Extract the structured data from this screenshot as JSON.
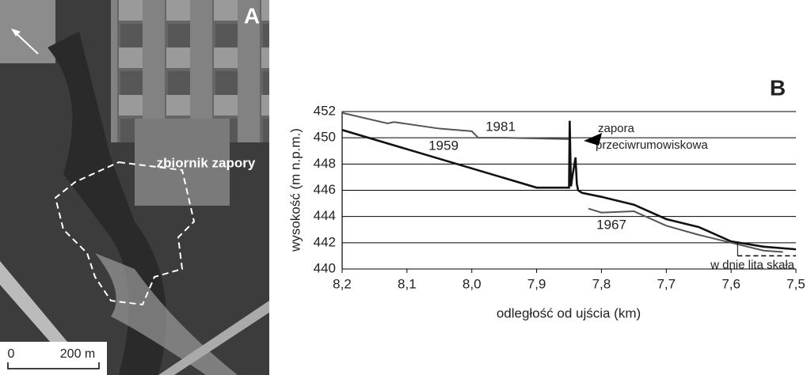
{
  "panel_a": {
    "label": "A",
    "annotation": "zbiornik zapory",
    "scale_bar": [
      "0",
      "200 m"
    ]
  },
  "chart_data": {
    "type": "line",
    "panel_label": "B",
    "x_label": "odległość od ujścia (km)",
    "y_label": "wysokość (m n.p.m.)",
    "xlim": [
      8.2,
      7.5
    ],
    "xticks": [
      {
        "value": 8.2,
        "label": "8,2"
      },
      {
        "value": 8.1,
        "label": "8,1"
      },
      {
        "value": 8.0,
        "label": "8,0"
      },
      {
        "value": 7.9,
        "label": "7,9"
      },
      {
        "value": 7.8,
        "label": "7,8"
      },
      {
        "value": 7.7,
        "label": "7,7"
      },
      {
        "value": 7.6,
        "label": "7,6"
      },
      {
        "value": 7.5,
        "label": "7,5"
      }
    ],
    "ylim": [
      440,
      452
    ],
    "yticks": [
      440,
      442,
      444,
      446,
      448,
      450,
      452
    ],
    "grid": true,
    "series": [
      {
        "name": "1981",
        "color": "#555555",
        "x": [
          8.2,
          8.13,
          8.12,
          8.05,
          8.0,
          7.99,
          7.95,
          7.85
        ],
        "values": [
          451.9,
          451.1,
          451.2,
          450.7,
          450.5,
          450.0,
          450.0,
          449.9
        ]
      },
      {
        "name": "1959",
        "color": "#111111",
        "x": [
          8.2,
          7.9,
          7.85,
          7.849,
          7.847,
          7.845,
          7.84,
          7.838,
          7.836,
          7.83,
          7.8,
          7.75,
          7.7,
          7.65,
          7.6,
          7.55,
          7.5
        ],
        "values": [
          450.6,
          446.2,
          446.2,
          451.3,
          446.3,
          447.0,
          448.5,
          446.5,
          446.0,
          445.8,
          445.5,
          444.9,
          443.8,
          443.2,
          442.1,
          441.7,
          441.5
        ]
      },
      {
        "name": "1967",
        "color": "#555555",
        "x": [
          7.82,
          7.8,
          7.75,
          7.7,
          7.65,
          7.6,
          7.55,
          7.52
        ],
        "values": [
          444.6,
          444.3,
          444.4,
          443.3,
          442.6,
          442.0,
          441.4,
          441.3
        ]
      }
    ],
    "annotations": [
      {
        "text": [
          "zapora",
          "przeciwrumowiskowa"
        ]
      },
      {
        "text": "w dnie lita skała",
        "x": [
          7.59,
          7.5
        ],
        "y": 441
      }
    ]
  }
}
